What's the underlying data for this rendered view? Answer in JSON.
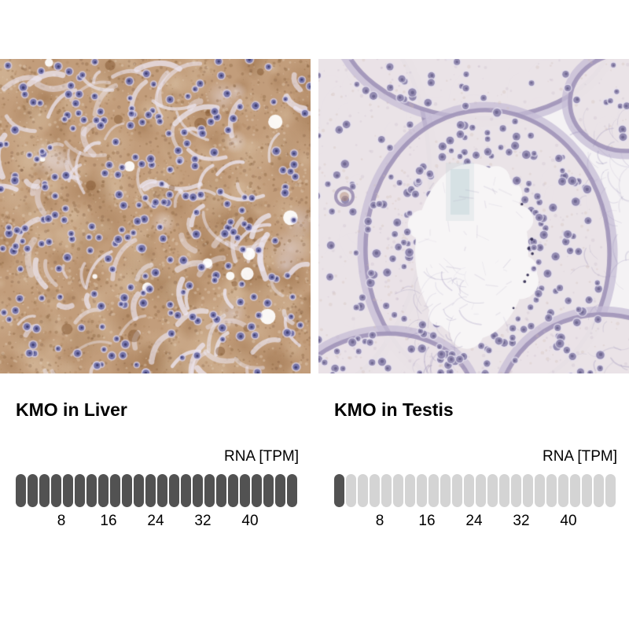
{
  "page": {
    "background": "#ffffff"
  },
  "colors": {
    "dot_filled": "#525252",
    "dot_empty": "#d4d4d4",
    "text": "#000000"
  },
  "panels": [
    {
      "id": "liver",
      "title": "KMO in Liver",
      "image_description": "IHC micrograph of liver tissue with moderate brown cytoplasmic staining and blue-purple nuclei",
      "axis_label": "RNA [TPM]",
      "ticks": [
        8,
        16,
        24,
        32,
        40
      ],
      "dots_total": 24,
      "dots_filled": 24
    },
    {
      "id": "testis",
      "title": "KMO in Testis",
      "image_description": "IHC micrograph of testis tissue, seminiferous tubules with pale lavender staining and blue-purple nuclei, central white lumen",
      "axis_label": "RNA [TPM]",
      "ticks": [
        8,
        16,
        24,
        32,
        40
      ],
      "dots_total": 24,
      "dots_filled": 1
    }
  ],
  "chart_data": [
    {
      "type": "bar",
      "style": "dot-strip",
      "title": "KMO in Liver",
      "xlabel": "RNA [TPM]",
      "x_ticks": [
        8,
        16,
        24,
        32,
        40
      ],
      "xlim": [
        0,
        48
      ],
      "tpm_per_dot": 2,
      "dots_total": 24,
      "dots_filled": 24,
      "estimated_value_tpm": 48,
      "fill_color": "#525252",
      "empty_color": "#d4d4d4"
    },
    {
      "type": "bar",
      "style": "dot-strip",
      "title": "KMO in Testis",
      "xlabel": "RNA [TPM]",
      "x_ticks": [
        8,
        16,
        24,
        32,
        40
      ],
      "xlim": [
        0,
        48
      ],
      "tpm_per_dot": 2,
      "dots_total": 24,
      "dots_filled": 1,
      "estimated_value_tpm": 2,
      "fill_color": "#525252",
      "empty_color": "#d4d4d4"
    }
  ]
}
